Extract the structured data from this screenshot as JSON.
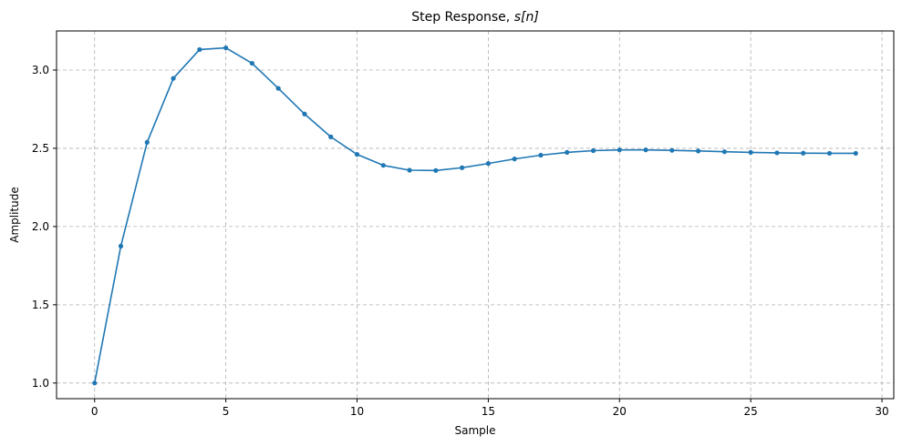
{
  "chart_data": {
    "type": "line",
    "title_plain": "Step Response, ",
    "title_math": "s[n]",
    "xlabel": "Sample",
    "ylabel": "Amplitude",
    "xlim": [
      -1.45,
      30.45
    ],
    "ylim": [
      0.9,
      3.25
    ],
    "xticks": [
      0,
      5,
      10,
      15,
      20,
      25,
      30
    ],
    "yticks": [
      1.0,
      1.5,
      2.0,
      2.5,
      3.0
    ],
    "ytick_labels": [
      "1.0",
      "1.5",
      "2.0",
      "2.5",
      "3.0"
    ],
    "grid": true,
    "color": "#1f77b4",
    "marker": "circle",
    "series": [
      {
        "x": [
          0,
          1,
          2,
          3,
          4,
          5,
          6,
          7,
          8,
          9,
          10,
          11,
          12,
          13,
          14,
          15,
          16,
          17,
          18,
          19,
          20,
          21,
          22,
          23,
          24,
          25,
          26,
          27,
          28,
          29
        ],
        "values": [
          1.0,
          1.875,
          2.538,
          2.947,
          3.131,
          3.142,
          3.043,
          2.883,
          2.719,
          2.573,
          2.461,
          2.391,
          2.36,
          2.358,
          2.376,
          2.403,
          2.432,
          2.456,
          2.474,
          2.485,
          2.49,
          2.49,
          2.487,
          2.483,
          2.478,
          2.474,
          2.471,
          2.469,
          2.468,
          2.468
        ]
      }
    ]
  }
}
